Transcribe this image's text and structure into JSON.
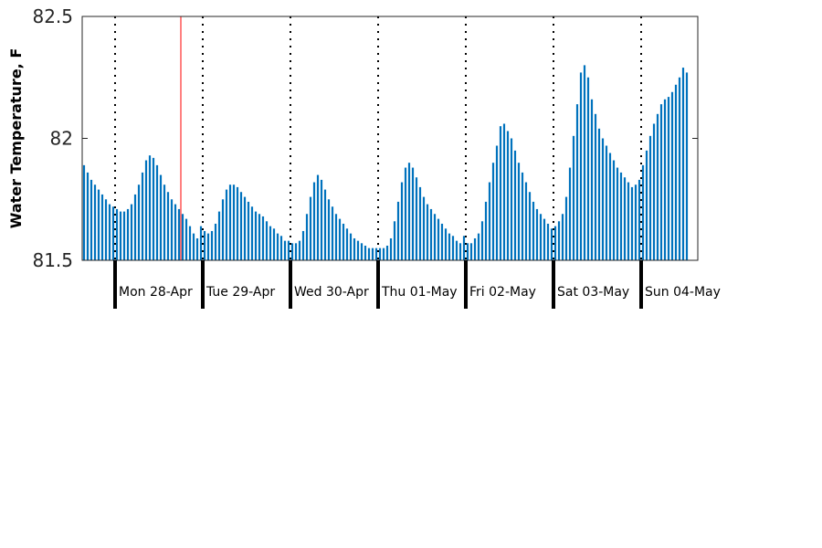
{
  "chart_data": {
    "type": "bar",
    "title": "",
    "xlabel": "",
    "ylabel": "Water Temperature, F",
    "ylim": [
      81.5,
      82.5
    ],
    "yticks": [
      {
        "value": 81.5,
        "label": "81.5"
      },
      {
        "value": 82.0,
        "label": "82"
      },
      {
        "value": 82.5,
        "label": "82.5"
      }
    ],
    "x_unit": "hours from start of record",
    "xlim": [
      0,
      168.5
    ],
    "day_boundaries": [
      9,
      33,
      57,
      81,
      105,
      129,
      153
    ],
    "day_labels": [
      "Mon 28-Apr",
      "Tue 29-Apr",
      "Wed 30-Apr",
      "Thu 01-May",
      "Fri 02-May",
      "Sat 03-May",
      "Sun 04-May"
    ],
    "marker_x": 27,
    "grid": false,
    "legend": "none",
    "colors": {
      "bar": "#0072BD",
      "marker": "#FF0000",
      "axis": "#262626",
      "boundary": "#000000"
    },
    "series": [
      {
        "values": [
          81.89,
          81.86,
          81.83,
          81.81,
          81.79,
          81.77,
          81.75,
          81.73,
          81.72,
          81.71,
          81.7,
          81.7,
          81.71,
          81.73,
          81.77,
          81.81,
          81.86,
          81.91,
          81.93,
          81.92,
          81.89,
          81.85,
          81.81,
          81.78,
          81.75,
          81.73,
          81.71,
          81.69,
          81.67,
          81.64,
          81.61,
          81.59,
          81.64,
          81.62,
          81.61,
          81.62,
          81.65,
          81.7,
          81.75,
          81.79,
          81.81,
          81.81,
          81.8,
          81.78,
          81.76,
          81.74,
          81.72,
          81.7,
          81.69,
          81.68,
          81.66,
          81.64,
          81.63,
          81.61,
          81.6,
          81.58,
          81.58,
          81.57,
          81.57,
          81.58,
          81.62,
          81.69,
          81.76,
          81.82,
          81.85,
          81.83,
          81.79,
          81.75,
          81.72,
          81.69,
          81.67,
          81.65,
          81.63,
          81.61,
          81.59,
          81.58,
          81.57,
          81.56,
          81.55,
          81.55,
          81.55,
          81.55,
          81.55,
          81.56,
          81.59,
          81.66,
          81.74,
          81.82,
          81.88,
          81.9,
          81.88,
          81.84,
          81.8,
          81.76,
          81.73,
          81.71,
          81.69,
          81.67,
          81.65,
          81.63,
          81.61,
          81.6,
          81.58,
          81.57,
          81.6,
          81.57,
          81.57,
          81.59,
          81.61,
          81.66,
          81.74,
          81.82,
          81.9,
          81.97,
          82.05,
          82.06,
          82.03,
          82.0,
          81.95,
          81.9,
          81.86,
          81.82,
          81.78,
          81.74,
          81.71,
          81.69,
          81.67,
          81.65,
          81.63,
          81.64,
          81.66,
          81.69,
          81.76,
          81.88,
          82.01,
          82.14,
          82.27,
          82.3,
          82.25,
          82.16,
          82.1,
          82.04,
          82.0,
          81.97,
          81.94,
          81.91,
          81.88,
          81.86,
          81.84,
          81.82,
          81.8,
          81.81,
          81.83,
          81.89,
          81.95,
          82.01,
          82.06,
          82.1,
          82.14,
          82.16,
          82.17,
          82.19,
          82.22,
          82.25,
          82.29,
          82.27
        ]
      }
    ]
  }
}
